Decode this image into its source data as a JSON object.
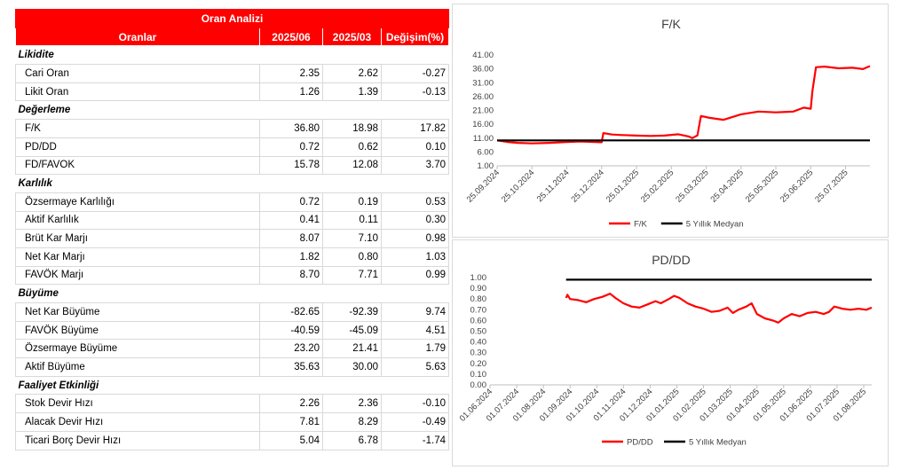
{
  "table": {
    "title": "Oran Analizi",
    "headers": [
      "Oranlar",
      "2025/06",
      "2025/03",
      "Değişim(%)"
    ],
    "sections": [
      {
        "name": "Likidite",
        "rows": [
          {
            "label": "Cari Oran",
            "v1": "2.35",
            "v2": "2.62",
            "chg": "-0.27"
          },
          {
            "label": "Likit Oran",
            "v1": "1.26",
            "v2": "1.39",
            "chg": "-0.13"
          }
        ]
      },
      {
        "name": "Değerleme",
        "rows": [
          {
            "label": "F/K",
            "v1": "36.80",
            "v2": "18.98",
            "chg": "17.82"
          },
          {
            "label": "PD/DD",
            "v1": "0.72",
            "v2": "0.62",
            "chg": "0.10"
          },
          {
            "label": "FD/FAVOK",
            "v1": "15.78",
            "v2": "12.08",
            "chg": "3.70"
          }
        ]
      },
      {
        "name": "Karlılık",
        "rows": [
          {
            "label": "Özsermaye Karlılığı",
            "v1": "0.72",
            "v2": "0.19",
            "chg": "0.53"
          },
          {
            "label": "Aktif Karlılık",
            "v1": "0.41",
            "v2": "0.11",
            "chg": "0.30"
          },
          {
            "label": "Brüt Kar Marjı",
            "v1": "8.07",
            "v2": "7.10",
            "chg": "0.98"
          },
          {
            "label": "Net Kar Marjı",
            "v1": "1.82",
            "v2": "0.80",
            "chg": "1.03"
          },
          {
            "label": "FAVÖK Marjı",
            "v1": "8.70",
            "v2": "7.71",
            "chg": "0.99"
          }
        ]
      },
      {
        "name": "Büyüme",
        "rows": [
          {
            "label": "Net Kar Büyüme",
            "v1": "-82.65",
            "v2": "-92.39",
            "chg": "9.74"
          },
          {
            "label": "FAVÖK Büyüme",
            "v1": "-40.59",
            "v2": "-45.09",
            "chg": "4.51"
          },
          {
            "label": "Özsermaye Büyüme",
            "v1": "23.20",
            "v2": "21.41",
            "chg": "1.79"
          },
          {
            "label": "Aktif Büyüme",
            "v1": "35.63",
            "v2": "30.00",
            "chg": "5.63"
          }
        ]
      },
      {
        "name": "Faaliyet Etkinliği",
        "rows": [
          {
            "label": "Stok Devir Hızı",
            "v1": "2.26",
            "v2": "2.36",
            "chg": "-0.10"
          },
          {
            "label": "Alacak Devir Hızı",
            "v1": "7.81",
            "v2": "8.29",
            "chg": "-0.49"
          },
          {
            "label": "Ticari Borç Devir Hızı",
            "v1": "5.04",
            "v2": "6.78",
            "chg": "-1.74"
          }
        ]
      }
    ]
  },
  "colors": {
    "accent": "#ff0000",
    "series": "#ff0000",
    "median": "#000000",
    "header_text": "#ffffff"
  },
  "chart_data": [
    {
      "type": "line",
      "title": "F/K",
      "yticks": [
        "1.00",
        "6.00",
        "11.00",
        "16.00",
        "21.00",
        "26.00",
        "31.00",
        "36.00",
        "41.00"
      ],
      "ylim": [
        1,
        41
      ],
      "xticks": [
        "25.09.2024",
        "25.10.2024",
        "25.11.2024",
        "25.12.2024",
        "25.01.2025",
        "25.02.2025",
        "25.03.2025",
        "25.04.2025",
        "25.05.2025",
        "25.06.2025",
        "25.07.2025"
      ],
      "x_range_months": [
        0,
        10.7
      ],
      "legend": [
        "F/K",
        "5 Yıllık Medyan"
      ],
      "legend_position": "bottom",
      "series": [
        {
          "name": "F/K",
          "x": [
            0,
            0.3,
            0.6,
            1.0,
            1.5,
            2.0,
            2.4,
            2.8,
            3.0,
            3.05,
            3.3,
            3.6,
            4.0,
            4.4,
            4.8,
            5.2,
            5.5,
            5.6,
            5.75,
            5.85,
            6.0,
            6.1,
            6.5,
            7.0,
            7.5,
            8.0,
            8.5,
            8.8,
            9.0,
            9.05,
            9.15,
            9.4,
            9.8,
            10.2,
            10.5,
            10.7
          ],
          "y": [
            10.2,
            9.6,
            9.3,
            9.1,
            9.3,
            9.6,
            9.8,
            9.6,
            9.5,
            12.8,
            12.3,
            12.1,
            11.9,
            11.8,
            11.9,
            12.4,
            11.6,
            11.0,
            12.0,
            19.0,
            18.6,
            18.3,
            17.6,
            19.6,
            20.6,
            20.3,
            20.6,
            22.0,
            21.6,
            28.0,
            36.6,
            36.8,
            36.2,
            36.4,
            35.9,
            37.0
          ]
        },
        {
          "name": "5 Yıllık Medyan",
          "x": [
            0,
            10.7
          ],
          "y": [
            10.2,
            10.2
          ]
        }
      ]
    },
    {
      "type": "line",
      "title": "PD/DD",
      "yticks": [
        "0.00",
        "0.10",
        "0.20",
        "0.30",
        "0.40",
        "0.50",
        "0.60",
        "0.70",
        "0.80",
        "0.90",
        "1.00"
      ],
      "ylim": [
        0,
        1
      ],
      "xticks": [
        "01.06.2024",
        "01.07.2024",
        "01.08.2024",
        "01.09.2024",
        "01.10.2024",
        "01.11.2024",
        "01.12.2024",
        "01.01.2025",
        "01.02.2025",
        "01.03.2025",
        "01.04.2025",
        "01.05.2025",
        "01.06.2025",
        "01.07.2025",
        "01.08.2025"
      ],
      "x_range_months": [
        0,
        14.3
      ],
      "legend": [
        "PD/DD",
        "5 Yıllık Medyan"
      ],
      "legend_position": "bottom",
      "series": [
        {
          "name": "PD/DD",
          "x": [
            2.85,
            2.9,
            3.0,
            3.3,
            3.6,
            3.9,
            4.2,
            4.5,
            4.7,
            5.0,
            5.3,
            5.6,
            5.9,
            6.2,
            6.4,
            6.7,
            6.9,
            7.1,
            7.4,
            7.7,
            8.0,
            8.3,
            8.6,
            8.9,
            9.1,
            9.3,
            9.6,
            9.8,
            10.0,
            10.3,
            10.6,
            10.8,
            11.0,
            11.3,
            11.6,
            11.9,
            12.2,
            12.5,
            12.7,
            12.9,
            13.2,
            13.5,
            13.8,
            14.1,
            14.3
          ],
          "y": [
            0.81,
            0.84,
            0.8,
            0.79,
            0.77,
            0.8,
            0.82,
            0.85,
            0.81,
            0.76,
            0.73,
            0.72,
            0.75,
            0.78,
            0.76,
            0.8,
            0.83,
            0.81,
            0.76,
            0.73,
            0.71,
            0.68,
            0.69,
            0.72,
            0.67,
            0.7,
            0.73,
            0.76,
            0.66,
            0.62,
            0.6,
            0.58,
            0.62,
            0.66,
            0.64,
            0.67,
            0.68,
            0.66,
            0.68,
            0.73,
            0.71,
            0.7,
            0.71,
            0.7,
            0.72
          ]
        },
        {
          "name": "5 Yıllık Medyan",
          "x": [
            2.85,
            14.3
          ],
          "y": [
            0.98,
            0.98
          ]
        }
      ]
    }
  ]
}
